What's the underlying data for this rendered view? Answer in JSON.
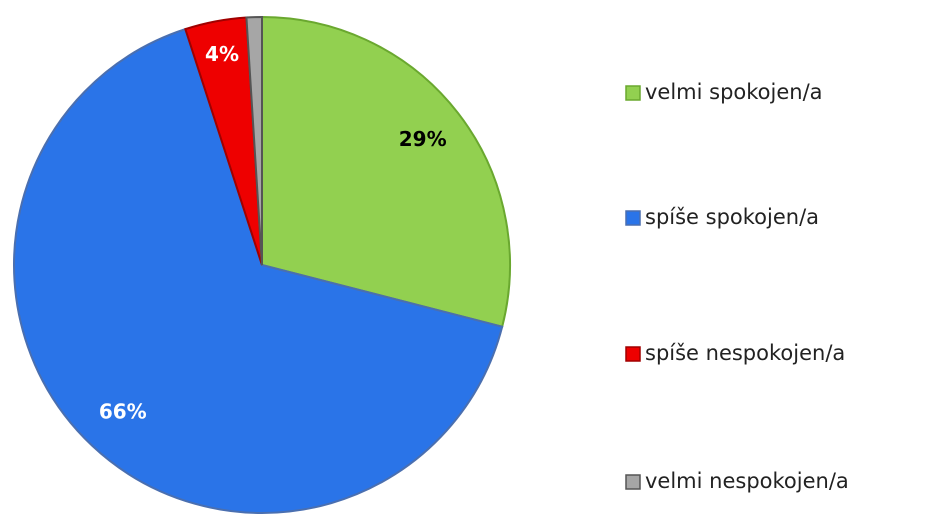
{
  "chart_data": {
    "type": "pie",
    "categories": [
      "velmi spokojen/a",
      "spíše spokojen/a",
      "spíše nespokojen/a",
      "velmi nespokojen/a"
    ],
    "values": [
      29,
      66,
      4,
      1
    ],
    "value_labels": [
      "29%",
      "66%",
      "4%",
      null
    ],
    "colors": [
      "#92d050",
      "#2a74e8",
      "#ee0000",
      "#a6a6a6"
    ],
    "legend": "right"
  }
}
